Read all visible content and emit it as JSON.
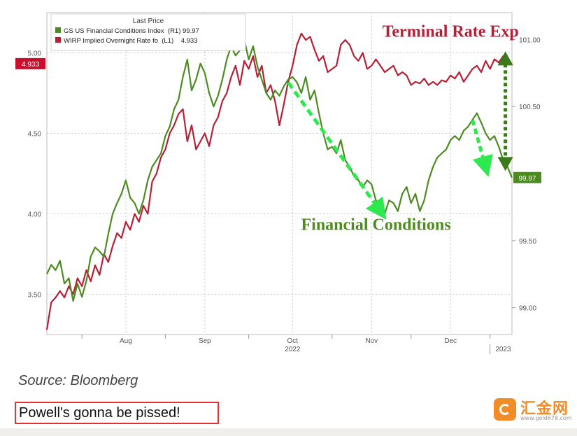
{
  "chart_data": {
    "type": "line",
    "legend": {
      "title": "Last Price",
      "placement": "top-left",
      "entries": [
        {
          "label": "GS US Financial Conditions Index  (R1) 99.97",
          "color": "#4e8a22",
          "axis": "right"
        },
        {
          "label": "WIRP Implied Overnight Rate fo  (L1)    4.933",
          "color": "#b52037",
          "axis": "left"
        }
      ]
    },
    "x_ticks": [
      "Aug",
      "Sep",
      "Oct",
      "Nov",
      "Dec"
    ],
    "x_sublabels": [
      "2022",
      "2023"
    ],
    "left_axis": {
      "ticks": [
        "3.50",
        "4.00",
        "4.50",
        "5.00"
      ],
      "range": [
        3.25,
        5.25
      ],
      "last_value": "4.933"
    },
    "right_axis": {
      "ticks": [
        "99.00",
        "99.50",
        "100.50",
        "101.00"
      ],
      "range": [
        98.8,
        101.2
      ],
      "last_value": "99.97"
    },
    "grid": true,
    "annotations": {
      "terminal_rate": "Terminal Rate Exp",
      "financial_conditions": "Financial Conditions"
    },
    "x_range": [
      0,
      106
    ],
    "series": [
      {
        "name": "WIRP Implied Overnight Rate fo",
        "color": "#b52037",
        "axis": "left",
        "x": [
          0,
          1,
          2,
          3,
          4,
          5,
          6,
          7,
          8,
          9,
          10,
          11,
          12,
          13,
          14,
          15,
          16,
          17,
          18,
          19,
          20,
          21,
          22,
          23,
          24,
          25,
          26,
          27,
          28,
          29,
          30,
          31,
          32,
          33,
          34,
          35,
          36,
          37,
          38,
          39,
          40,
          41,
          42,
          43,
          44,
          45,
          46,
          47,
          48,
          49,
          50,
          51,
          52,
          53,
          54,
          55,
          56,
          57,
          58,
          59,
          60,
          61,
          62,
          63,
          64,
          65,
          66,
          67,
          68,
          69,
          70,
          71,
          72,
          73,
          74,
          75,
          76,
          77,
          78,
          79,
          80,
          81,
          82,
          83,
          84,
          85,
          86,
          87,
          88,
          89,
          90,
          91,
          92,
          93,
          94,
          95,
          96,
          97,
          98,
          99,
          100,
          101,
          102,
          103,
          104,
          105,
          106
        ],
        "values": [
          3.28,
          3.45,
          3.48,
          3.52,
          3.48,
          3.55,
          3.5,
          3.6,
          3.55,
          3.65,
          3.58,
          3.68,
          3.62,
          3.75,
          3.7,
          3.8,
          3.88,
          3.85,
          3.95,
          3.9,
          4.0,
          3.95,
          4.05,
          4.0,
          4.2,
          4.25,
          4.35,
          4.4,
          4.5,
          4.55,
          4.62,
          4.65,
          4.45,
          4.55,
          4.4,
          4.45,
          4.5,
          4.42,
          4.55,
          4.6,
          4.7,
          4.75,
          4.85,
          4.92,
          4.8,
          4.95,
          4.9,
          4.98,
          4.85,
          4.92,
          4.75,
          4.8,
          4.7,
          4.55,
          4.68,
          4.82,
          4.92,
          5.05,
          5.12,
          5.08,
          5.1,
          5.02,
          4.95,
          4.98,
          4.88,
          4.9,
          4.92,
          5.05,
          5.08,
          5.05,
          4.98,
          4.95,
          5.0,
          4.9,
          4.92,
          4.96,
          4.92,
          4.88,
          4.9,
          4.92,
          4.86,
          4.88,
          4.86,
          4.8,
          4.82,
          4.81,
          4.84,
          4.8,
          4.82,
          4.8,
          4.83,
          4.82,
          4.86,
          4.84,
          4.88,
          4.82,
          4.86,
          4.9,
          4.92,
          4.88,
          4.95,
          4.9,
          4.96,
          4.94,
          4.98,
          4.95,
          4.933
        ]
      },
      {
        "name": "GS US Financial Conditions Index",
        "color": "#4e8a22",
        "axis": "right",
        "x": [
          0,
          1,
          2,
          3,
          4,
          5,
          6,
          7,
          8,
          9,
          10,
          11,
          12,
          13,
          14,
          15,
          16,
          17,
          18,
          19,
          20,
          21,
          22,
          23,
          24,
          25,
          26,
          27,
          28,
          29,
          30,
          31,
          32,
          33,
          34,
          35,
          36,
          37,
          38,
          39,
          40,
          41,
          42,
          43,
          44,
          45,
          46,
          47,
          48,
          49,
          50,
          51,
          52,
          53,
          54,
          55,
          56,
          57,
          58,
          59,
          60,
          61,
          62,
          63,
          64,
          65,
          66,
          67,
          68,
          69,
          70,
          71,
          72,
          73,
          74,
          75,
          76,
          77,
          78,
          79,
          80,
          81,
          82,
          83,
          84,
          85,
          86,
          87,
          88,
          89,
          90,
          91,
          92,
          93,
          94,
          95,
          96,
          97,
          98,
          99,
          100,
          101,
          102,
          103,
          104,
          105,
          106
        ],
        "values": [
          99.25,
          99.32,
          99.28,
          99.35,
          99.18,
          99.22,
          99.05,
          99.18,
          99.08,
          99.2,
          99.38,
          99.45,
          99.42,
          99.38,
          99.55,
          99.7,
          99.78,
          99.85,
          99.95,
          99.82,
          99.78,
          99.7,
          99.8,
          99.95,
          100.05,
          100.1,
          100.15,
          100.28,
          100.35,
          100.48,
          100.55,
          100.72,
          100.85,
          100.62,
          100.7,
          100.82,
          100.75,
          100.6,
          100.5,
          100.58,
          100.7,
          100.85,
          100.95,
          100.88,
          100.92,
          101.0,
          100.85,
          100.95,
          100.8,
          100.7,
          100.6,
          100.55,
          100.62,
          100.58,
          100.65,
          100.7,
          100.72,
          100.68,
          100.6,
          100.72,
          100.55,
          100.62,
          100.45,
          100.3,
          100.18,
          100.2,
          100.15,
          100.25,
          100.1,
          100.05,
          99.98,
          99.95,
          99.9,
          99.95,
          99.92,
          99.8,
          99.75,
          99.7,
          99.8,
          99.78,
          99.72,
          99.85,
          99.9,
          99.78,
          99.85,
          99.72,
          99.8,
          99.95,
          100.05,
          100.12,
          100.15,
          100.18,
          100.25,
          100.28,
          100.25,
          100.32,
          100.35,
          100.4,
          100.45,
          100.38,
          100.3,
          100.25,
          100.28,
          100.2,
          100.1,
          100.05,
          99.97
        ]
      }
    ]
  }
}
